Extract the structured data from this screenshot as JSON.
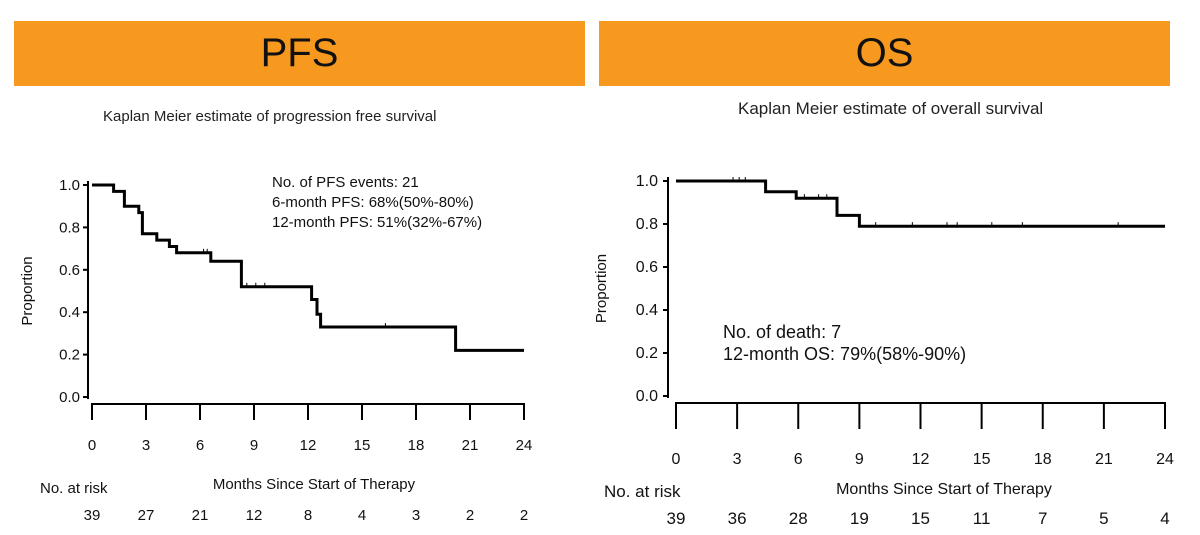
{
  "panels": {
    "pfs": {
      "banner": "PFS",
      "subtitle": "Kaplan Meier estimate of progression free survival"
    },
    "os": {
      "banner": "OS",
      "subtitle": "Kaplan Meier estimate of overall survival"
    }
  },
  "chart_data": [
    {
      "type": "line",
      "step": true,
      "title": "Kaplan Meier estimate of progression free survival",
      "xlabel": "Months Since Start of Therapy",
      "ylabel": "Proportion",
      "xlim": [
        0,
        24
      ],
      "ylim": [
        0,
        1.0
      ],
      "xticks": [
        0,
        3,
        6,
        9,
        12,
        15,
        18,
        21,
        24
      ],
      "yticks": [
        "0.0",
        "0.2",
        "0.4",
        "0.6",
        "0.8",
        "1.0"
      ],
      "grid": false,
      "annotations": [
        "No. of PFS events: 21",
        "6-month PFS: 68%(50%-80%)",
        "12-month PFS: 51%(32%-67%)"
      ],
      "risk_label": "No. at risk",
      "at_risk": [
        39,
        27,
        21,
        12,
        8,
        4,
        3,
        2,
        2
      ],
      "curve": [
        [
          0,
          1.0
        ],
        [
          1.2,
          1.0
        ],
        [
          1.2,
          0.97
        ],
        [
          1.8,
          0.97
        ],
        [
          1.8,
          0.9
        ],
        [
          2.6,
          0.9
        ],
        [
          2.6,
          0.87
        ],
        [
          2.8,
          0.87
        ],
        [
          2.8,
          0.77
        ],
        [
          3.6,
          0.77
        ],
        [
          3.6,
          0.74
        ],
        [
          4.3,
          0.74
        ],
        [
          4.3,
          0.71
        ],
        [
          4.7,
          0.71
        ],
        [
          4.7,
          0.68
        ],
        [
          6.6,
          0.68
        ],
        [
          6.6,
          0.64
        ],
        [
          8.3,
          0.64
        ],
        [
          8.3,
          0.52
        ],
        [
          12.2,
          0.52
        ],
        [
          12.2,
          0.46
        ],
        [
          12.5,
          0.46
        ],
        [
          12.5,
          0.39
        ],
        [
          12.7,
          0.39
        ],
        [
          12.7,
          0.33
        ],
        [
          20.2,
          0.33
        ],
        [
          20.2,
          0.22
        ],
        [
          24,
          0.22
        ]
      ],
      "censored": [
        [
          6.2,
          0.68
        ],
        [
          6.4,
          0.68
        ],
        [
          8.6,
          0.52
        ],
        [
          9.1,
          0.52
        ],
        [
          9.6,
          0.52
        ],
        [
          16.3,
          0.33
        ]
      ]
    },
    {
      "type": "line",
      "step": true,
      "title": "Kaplan Meier estimate of overall survival",
      "xlabel": "Months Since Start of Therapy",
      "ylabel": "Proportion",
      "xlim": [
        0,
        24
      ],
      "ylim": [
        0,
        1.0
      ],
      "xticks": [
        0,
        3,
        6,
        9,
        12,
        15,
        18,
        21,
        24
      ],
      "yticks": [
        "0.0",
        "0.2",
        "0.4",
        "0.6",
        "0.8",
        "1.0"
      ],
      "grid": false,
      "annotations": [
        "No. of death: 7",
        "12-month OS: 79%(58%-90%)"
      ],
      "risk_label": "No. at risk",
      "at_risk": [
        39,
        36,
        28,
        19,
        15,
        11,
        7,
        5,
        4
      ],
      "curve": [
        [
          0,
          1.0
        ],
        [
          4.4,
          1.0
        ],
        [
          4.4,
          0.95
        ],
        [
          5.9,
          0.95
        ],
        [
          5.9,
          0.92
        ],
        [
          7.9,
          0.92
        ],
        [
          7.9,
          0.84
        ],
        [
          9.0,
          0.84
        ],
        [
          9.0,
          0.79
        ],
        [
          24,
          0.79
        ]
      ],
      "censored": [
        [
          2.8,
          1.0
        ],
        [
          3.1,
          1.0
        ],
        [
          3.4,
          1.0
        ],
        [
          6.3,
          0.92
        ],
        [
          7.0,
          0.92
        ],
        [
          7.4,
          0.92
        ],
        [
          9.8,
          0.79
        ],
        [
          11.6,
          0.79
        ],
        [
          13.3,
          0.79
        ],
        [
          13.8,
          0.79
        ],
        [
          15.5,
          0.79
        ],
        [
          17.0,
          0.79
        ],
        [
          21.7,
          0.79
        ]
      ]
    }
  ]
}
